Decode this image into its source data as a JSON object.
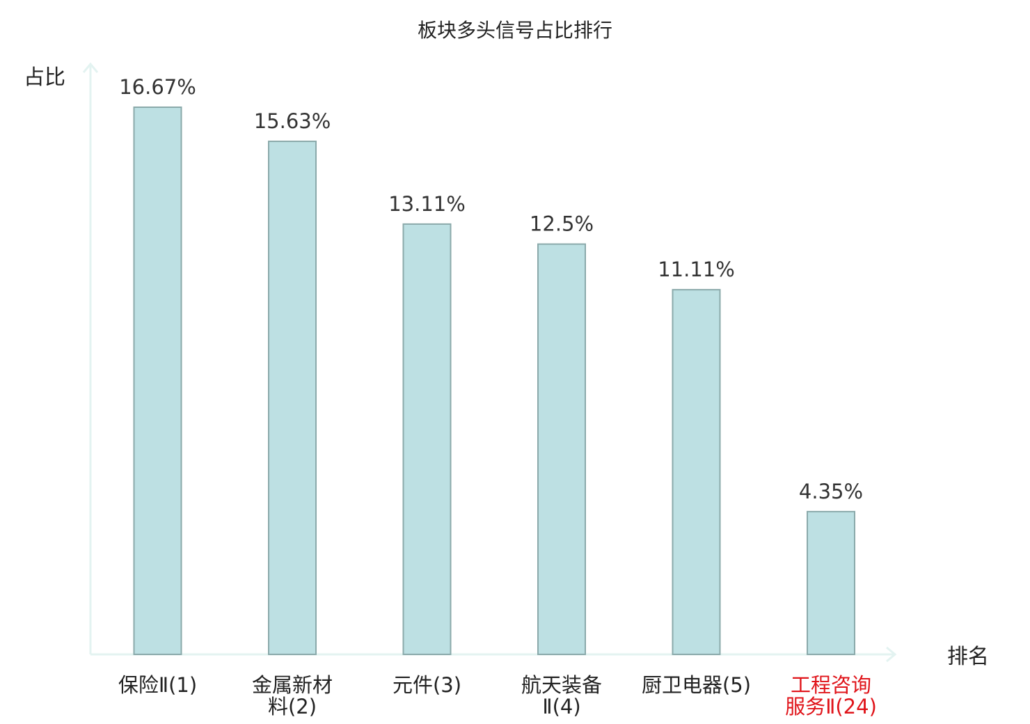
{
  "chart_data": {
    "type": "bar",
    "title": "板块多头信号占比排行",
    "xlabel": "排名",
    "ylabel": "占比",
    "categories": [
      [
        "保险Ⅱ(1)"
      ],
      [
        "金属新材",
        "料(2)"
      ],
      [
        "元件(3)"
      ],
      [
        "航天装备",
        "Ⅱ(4)"
      ],
      [
        "厨卫电器(5)"
      ],
      [
        "工程咨询",
        "服务Ⅱ(24)"
      ]
    ],
    "values": [
      16.67,
      15.63,
      13.11,
      12.5,
      11.11,
      4.35
    ],
    "value_labels": [
      "16.67%",
      "15.63%",
      "13.11%",
      "12.5%",
      "11.11%",
      "4.35%"
    ],
    "highlight_index": 5,
    "ylim": [
      0,
      16.67
    ],
    "grid": false,
    "colors": {
      "bar_fill": "#bde0e3",
      "bar_stroke": "#8aa9aa",
      "axis": "#e3f3f1",
      "highlight": "#e0141a",
      "category_text": "#222222"
    }
  }
}
